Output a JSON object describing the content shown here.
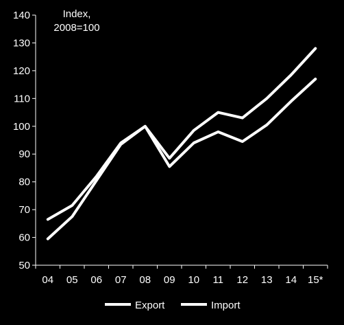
{
  "chart_data": {
    "type": "line",
    "annotation": [
      "Index,",
      "2008=100"
    ],
    "categories": [
      "04",
      "05",
      "06",
      "07",
      "08",
      "09",
      "10",
      "11",
      "12",
      "13",
      "14",
      "15*"
    ],
    "ylim": [
      50,
      140
    ],
    "yticks": [
      "50",
      "60",
      "70",
      "80",
      "90",
      "100",
      "110",
      "120",
      "130",
      "140"
    ],
    "grid": false,
    "legend_position": "bottom",
    "series": [
      {
        "name": "Export",
        "color": "#ffffff",
        "values": [
          59.5,
          67.5,
          80.5,
          93.5,
          100,
          88.5,
          98.5,
          105,
          103,
          110,
          118.5,
          128
        ]
      },
      {
        "name": "Import",
        "color": "#ffffff",
        "values": [
          66.5,
          71.5,
          82,
          94,
          100,
          85.5,
          94,
          98,
          94.5,
          100.5,
          109,
          117
        ]
      }
    ]
  }
}
